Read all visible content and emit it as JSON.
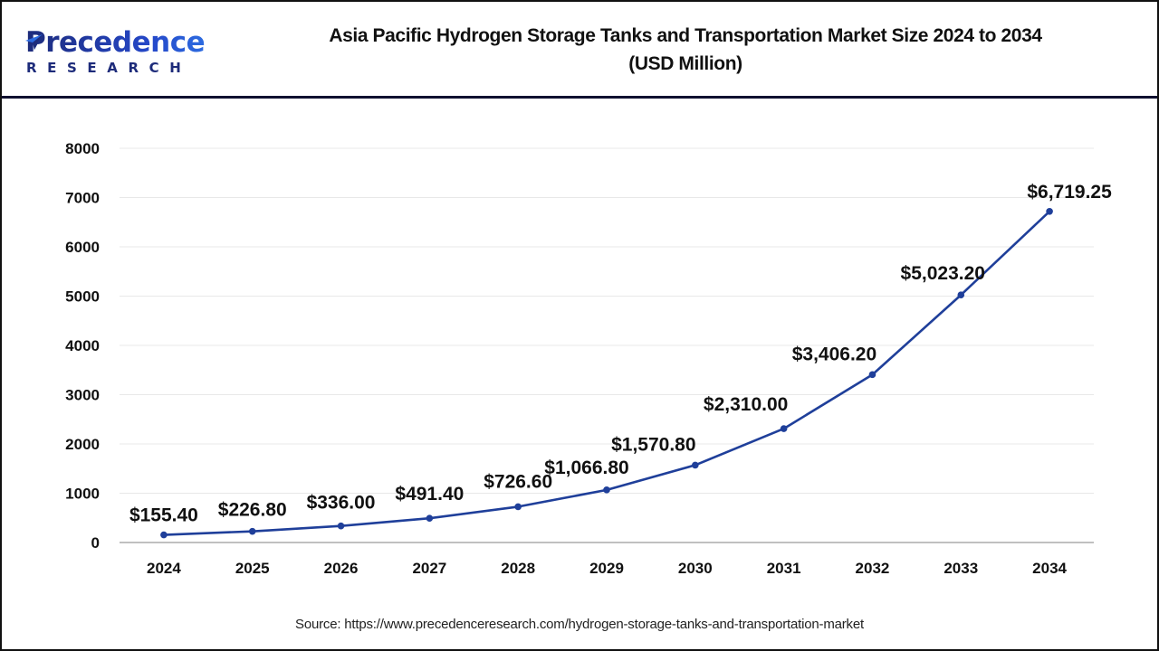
{
  "header": {
    "logo": {
      "word": "Precedence",
      "sub": "RESEARCH",
      "icon": "paper-plane-icon"
    },
    "title_line1": "Asia Pacific Hydrogen Storage Tanks and Transportation Market Size 2024 to 2034",
    "title_line2": "(USD Million)"
  },
  "footer": {
    "source": "Source: https://www.precedenceresearch.com/hydrogen-storage-tanks-and-transportation-market"
  },
  "colors": {
    "line": "#1f3f9a",
    "marker": "#1f3f9a",
    "grid": "#e8e8e8",
    "axis": "#c0c0c0",
    "text": "#111111",
    "logo_dark": "#1d2b7a",
    "logo_light": "#2c6be0"
  },
  "chart_data": {
    "type": "line",
    "title": "Asia Pacific Hydrogen Storage Tanks and Transportation Market Size 2024 to 2034 (USD Million)",
    "xlabel": "",
    "ylabel": "",
    "categories": [
      "2024",
      "2025",
      "2026",
      "2027",
      "2028",
      "2029",
      "2030",
      "2031",
      "2032",
      "2033",
      "2034"
    ],
    "series": [
      {
        "name": "Market Size (USD Million)",
        "values": [
          155.4,
          226.8,
          336.0,
          491.4,
          726.6,
          1066.8,
          1570.8,
          2310.0,
          3406.2,
          5023.2,
          6719.25
        ],
        "labels": [
          "$155.40",
          "$226.80",
          "$336.00",
          "$491.40",
          "$726.60",
          "$1,066.80",
          "$1,570.80",
          "$2,310.00",
          "$3,406.20",
          "$5,023.20",
          "$6,719.25"
        ]
      }
    ],
    "ylim": [
      0,
      8000
    ],
    "yticks": [
      "0",
      "1000",
      "2000",
      "3000",
      "4000",
      "5000",
      "6000",
      "7000",
      "8000"
    ],
    "grid": true,
    "legend": "none"
  }
}
